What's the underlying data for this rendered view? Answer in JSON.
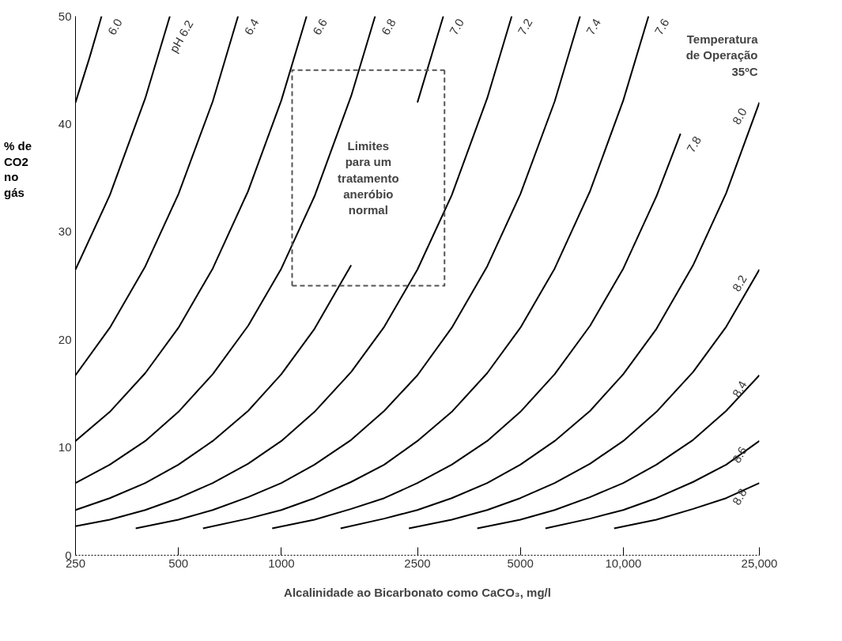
{
  "chart_data": {
    "type": "line",
    "xlabel": "Alcalinidade ao Bicarbonato como CaCO₃, mg/l",
    "ylabel": "% de CO2 no gás",
    "log": "x",
    "grid": false,
    "line_style": "solid",
    "xlim": [
      250,
      25000
    ],
    "ylim": [
      0,
      50
    ],
    "xticks": [
      250,
      500,
      1000,
      2500,
      5000,
      {
        "value": 10000,
        "label": "10,000"
      },
      {
        "value": 25000,
        "label": "25,000"
      }
    ],
    "yticks": [
      0,
      10,
      20,
      30,
      40,
      50
    ],
    "annotations": [
      "Limites para um tratamento aneróbio normal",
      "Temperatura de Operação 35ºC"
    ],
    "series": [
      {
        "name": "6.0",
        "color": "#000000",
        "x": [
          250,
          275,
          298
        ],
        "values": [
          42.0,
          46.2,
          50
        ]
      },
      {
        "name": "pH 6.2",
        "color": "#000000",
        "x": [
          250,
          315,
          400,
          472
        ],
        "values": [
          26.5,
          33.4,
          42.4,
          50
        ]
      },
      {
        "name": "6.4",
        "color": "#000000",
        "x": [
          250,
          315,
          400,
          500,
          630,
          747
        ],
        "values": [
          16.7,
          21.1,
          26.8,
          33.5,
          42.1,
          50
        ]
      },
      {
        "name": "6.6",
        "color": "#000000",
        "x": [
          250,
          315,
          400,
          500,
          630,
          800,
          1000,
          1185
        ],
        "values": [
          10.6,
          13.3,
          16.9,
          21.1,
          26.6,
          33.8,
          42.2,
          50
        ]
      },
      {
        "name": "6.8",
        "color": "#000000",
        "x": [
          250,
          315,
          400,
          500,
          630,
          800,
          1000,
          1250,
          1600,
          1880
        ],
        "values": [
          6.7,
          8.4,
          10.6,
          13.3,
          16.8,
          21.3,
          26.6,
          33.3,
          42.6,
          50
        ]
      },
      {
        "name": "7.0",
        "color": "#000000",
        "x": [
          250,
          315,
          400,
          500,
          630,
          800,
          1000,
          1250,
          1600,
          2000,
          2500,
          2976
        ],
        "values": [
          4.2,
          5.3,
          6.7,
          8.4,
          10.6,
          13.4,
          16.8,
          21.0,
          26.9,
          null,
          42.0,
          50
        ]
      },
      {
        "name": "7.2",
        "color": "#000000",
        "x": [
          250,
          315,
          400,
          500,
          630,
          800,
          1000,
          1250,
          1600,
          2000,
          2500,
          3150,
          4000,
          4717
        ],
        "values": [
          2.7,
          3.3,
          4.2,
          5.3,
          6.7,
          8.5,
          10.6,
          13.3,
          17.0,
          21.2,
          26.5,
          33.4,
          42.4,
          50
        ]
      },
      {
        "name": "7.4",
        "color": "#000000",
        "x": [
          375,
          500,
          630,
          800,
          1000,
          1250,
          1600,
          2000,
          2500,
          3150,
          4000,
          5000,
          6300,
          7474
        ],
        "values": [
          2.5,
          3.3,
          4.2,
          5.4,
          6.7,
          8.4,
          10.7,
          13.4,
          16.7,
          21.1,
          26.8,
          33.5,
          42.1,
          50
        ]
      },
      {
        "name": "7.6",
        "color": "#000000",
        "x": [
          590,
          800,
          1000,
          1250,
          1600,
          2000,
          2500,
          3150,
          4000,
          5000,
          6300,
          8000,
          10000,
          11850
        ],
        "values": [
          2.5,
          3.4,
          4.2,
          5.3,
          6.8,
          8.4,
          10.6,
          13.3,
          16.9,
          21.1,
          26.6,
          33.8,
          42.2,
          50
        ]
      },
      {
        "name": "7.8",
        "color": "#000000",
        "x": [
          940,
          1250,
          1600,
          2000,
          2500,
          3150,
          4000,
          5000,
          6300,
          8000,
          10000,
          12500,
          14700
        ],
        "values": [
          2.5,
          3.3,
          4.3,
          5.3,
          6.7,
          8.4,
          10.6,
          13.3,
          16.8,
          21.3,
          26.6,
          33.3,
          39.1
        ]
      },
      {
        "name": "8.0",
        "color": "#000000",
        "x": [
          1490,
          2000,
          2500,
          3150,
          4000,
          5000,
          6300,
          8000,
          10000,
          12500,
          16000,
          20000,
          25000
        ],
        "values": [
          2.5,
          3.4,
          4.2,
          5.3,
          6.7,
          8.4,
          10.6,
          13.4,
          16.8,
          21.0,
          26.9,
          33.6,
          42.0
        ]
      },
      {
        "name": "8.2",
        "color": "#000000",
        "x": [
          2360,
          3150,
          4000,
          5000,
          6300,
          8000,
          10000,
          12500,
          16000,
          20000,
          25000
        ],
        "values": [
          2.5,
          3.3,
          4.2,
          5.3,
          6.7,
          8.5,
          10.6,
          13.3,
          17.0,
          21.2,
          26.5
        ]
      },
      {
        "name": "8.4",
        "color": "#000000",
        "x": [
          3740,
          5000,
          6300,
          8000,
          10000,
          12500,
          16000,
          20000,
          25000
        ],
        "values": [
          2.5,
          3.3,
          4.2,
          5.4,
          6.7,
          8.4,
          10.7,
          13.4,
          16.7
        ]
      },
      {
        "name": "8.6",
        "color": "#000000",
        "x": [
          5920,
          8000,
          10000,
          12500,
          16000,
          20000,
          25000
        ],
        "values": [
          2.5,
          3.4,
          4.2,
          5.3,
          6.8,
          8.4,
          10.6
        ]
      },
      {
        "name": "8.8",
        "color": "#000000",
        "x": [
          9400,
          12500,
          16000,
          20000,
          25000
        ],
        "values": [
          2.5,
          3.3,
          4.3,
          5.3,
          6.7
        ]
      },
      {
        "color": "#555555",
        "line_style": "dashed",
        "x": [
          1075,
          1075,
          3000
        ],
        "values": [
          25,
          45,
          45
        ]
      },
      {
        "color": "#555555",
        "line_style": "dashed",
        "x": [
          1075,
          3000,
          3000
        ],
        "values": [
          25,
          25,
          45
        ]
      }
    ]
  }
}
